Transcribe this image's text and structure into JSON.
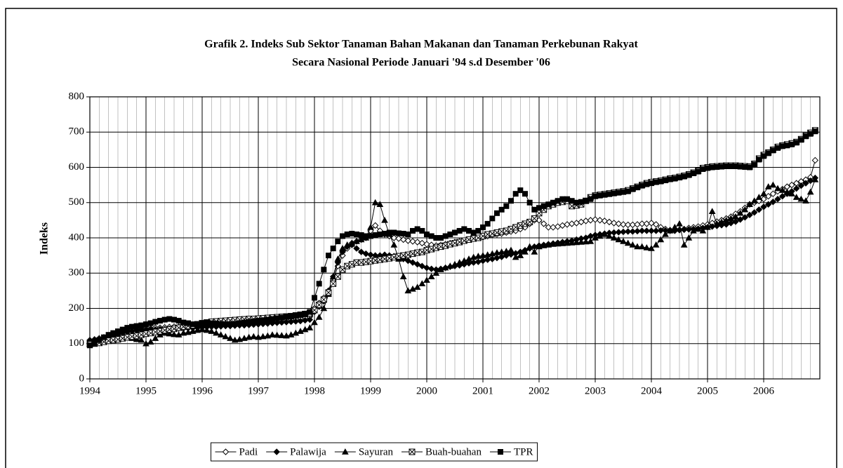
{
  "chart_data": {
    "type": "line",
    "title": "Grafik 2. Indeks Sub Sektor Tanaman Bahan Makanan dan Tanaman Perkebunan Rakyat",
    "subtitle": "Secara Nasional Periode Januari '94 s.d Desember '06",
    "y_label": "Indeks",
    "ylim": [
      0,
      800
    ],
    "yticks": [
      0,
      100,
      200,
      300,
      400,
      500,
      600,
      700,
      800
    ],
    "grid": true,
    "legend": "bottom",
    "categories": [
      "1994",
      null,
      null,
      null,
      null,
      null,
      null,
      null,
      null,
      null,
      null,
      null,
      "1995",
      null,
      null,
      null,
      null,
      null,
      null,
      null,
      null,
      null,
      null,
      null,
      "1996",
      null,
      null,
      null,
      null,
      null,
      null,
      null,
      null,
      null,
      null,
      null,
      "1997",
      null,
      null,
      null,
      null,
      null,
      null,
      null,
      null,
      null,
      null,
      null,
      "1998",
      null,
      null,
      null,
      null,
      null,
      null,
      null,
      null,
      null,
      null,
      null,
      "1999",
      null,
      null,
      null,
      null,
      null,
      null,
      null,
      null,
      null,
      null,
      null,
      "2000",
      null,
      null,
      null,
      null,
      null,
      null,
      null,
      null,
      null,
      null,
      null,
      "2001",
      null,
      null,
      null,
      null,
      null,
      null,
      null,
      null,
      null,
      null,
      null,
      "2002",
      null,
      null,
      null,
      null,
      null,
      null,
      null,
      null,
      null,
      null,
      null,
      "2003",
      null,
      null,
      null,
      null,
      null,
      null,
      null,
      null,
      null,
      null,
      null,
      "2004",
      null,
      null,
      null,
      null,
      null,
      null,
      null,
      null,
      null,
      null,
      null,
      "2005",
      null,
      null,
      null,
      null,
      null,
      null,
      null,
      null,
      null,
      null,
      null,
      "2006",
      null,
      null,
      null,
      null,
      null,
      null,
      null,
      null,
      null,
      null,
      null
    ],
    "series": [
      {
        "name": "Padi",
        "color": "#000000",
        "marker": "diamond-open",
        "values": [
          110,
          112,
          115,
          118,
          120,
          125,
          128,
          130,
          133,
          135,
          138,
          140,
          142,
          143,
          145,
          145,
          146,
          147,
          148,
          148,
          149,
          150,
          150,
          151,
          152,
          153,
          154,
          155,
          155,
          156,
          157,
          158,
          158,
          159,
          160,
          160,
          161,
          162,
          163,
          164,
          165,
          166,
          167,
          168,
          170,
          172,
          174,
          176,
          200,
          215,
          230,
          250,
          280,
          320,
          350,
          370,
          385,
          390,
          395,
          400,
          420,
          435,
          420,
          410,
          405,
          400,
          398,
          395,
          392,
          390,
          388,
          385,
          382,
          380,
          378,
          380,
          382,
          385,
          388,
          390,
          392,
          395,
          398,
          400,
          402,
          405,
          408,
          410,
          412,
          415,
          418,
          420,
          425,
          430,
          440,
          450,
          450,
          440,
          430,
          430,
          432,
          435,
          438,
          440,
          442,
          445,
          448,
          450,
          452,
          450,
          448,
          445,
          442,
          440,
          438,
          437,
          437,
          438,
          440,
          440,
          442,
          438,
          430,
          425,
          420,
          420,
          422,
          425,
          428,
          430,
          432,
          435,
          438,
          442,
          446,
          450,
          455,
          460,
          468,
          475,
          485,
          495,
          500,
          505,
          510,
          518,
          525,
          532,
          538,
          545,
          550,
          555,
          560,
          565,
          572,
          620
        ]
      },
      {
        "name": "Palawija",
        "color": "#000000",
        "marker": "diamond",
        "values": [
          108,
          110,
          112,
          115,
          118,
          122,
          126,
          130,
          133,
          135,
          137,
          138,
          139,
          140,
          140,
          141,
          141,
          142,
          142,
          143,
          143,
          144,
          144,
          145,
          146,
          147,
          148,
          148,
          149,
          150,
          150,
          151,
          152,
          152,
          153,
          154,
          155,
          156,
          157,
          158,
          159,
          160,
          161,
          162,
          163,
          164,
          166,
          168,
          190,
          205,
          220,
          250,
          290,
          330,
          360,
          375,
          380,
          370,
          360,
          355,
          352,
          350,
          350,
          352,
          350,
          348,
          345,
          340,
          335,
          330,
          325,
          320,
          315,
          312,
          310,
          312,
          315,
          318,
          320,
          322,
          325,
          328,
          330,
          332,
          335,
          338,
          340,
          343,
          346,
          350,
          353,
          356,
          360,
          365,
          370,
          375,
          378,
          380,
          382,
          384,
          386,
          388,
          390,
          392,
          395,
          398,
          400,
          405,
          408,
          410,
          412,
          414,
          415,
          416,
          417,
          418,
          418,
          419,
          420,
          420,
          420,
          420,
          421,
          421,
          422,
          422,
          423,
          423,
          424,
          425,
          426,
          428,
          430,
          432,
          434,
          436,
          438,
          442,
          446,
          452,
          458,
          465,
          472,
          480,
          488,
          495,
          502,
          510,
          518,
          525,
          532,
          540,
          548,
          555,
          562,
          570
        ]
      },
      {
        "name": "Sayuran",
        "color": "#000000",
        "marker": "triangle",
        "values": [
          100,
          105,
          108,
          110,
          112,
          115,
          118,
          120,
          118,
          115,
          112,
          110,
          100,
          105,
          115,
          125,
          130,
          128,
          126,
          125,
          130,
          132,
          135,
          138,
          140,
          138,
          135,
          130,
          125,
          120,
          115,
          110,
          112,
          115,
          118,
          120,
          118,
          120,
          122,
          125,
          124,
          123,
          122,
          125,
          130,
          135,
          140,
          145,
          160,
          175,
          200,
          240,
          290,
          340,
          370,
          380,
          385,
          390,
          395,
          400,
          430,
          500,
          495,
          450,
          410,
          380,
          340,
          290,
          250,
          255,
          260,
          270,
          280,
          290,
          300,
          310,
          315,
          320,
          325,
          330,
          335,
          340,
          345,
          348,
          350,
          352,
          355,
          358,
          360,
          362,
          365,
          345,
          350,
          360,
          375,
          360,
          375,
          378,
          380,
          382,
          383,
          384,
          385,
          386,
          387,
          388,
          389,
          390,
          400,
          405,
          410,
          405,
          400,
          395,
          390,
          385,
          380,
          375,
          375,
          372,
          370,
          380,
          395,
          410,
          420,
          430,
          440,
          380,
          400,
          420,
          425,
          420,
          430,
          475,
          440,
          445,
          450,
          455,
          460,
          470,
          480,
          495,
          505,
          515,
          525,
          545,
          550,
          540,
          535,
          530,
          525,
          515,
          510,
          505,
          530,
          565
        ]
      },
      {
        "name": "Buah-buahan",
        "color": "#000000",
        "marker": "square-x",
        "values": [
          98,
          100,
          102,
          105,
          108,
          110,
          112,
          115,
          118,
          120,
          122,
          125,
          128,
          130,
          133,
          135,
          138,
          140,
          142,
          145,
          148,
          150,
          152,
          155,
          158,
          160,
          162,
          163,
          164,
          165,
          166,
          167,
          168,
          169,
          170,
          170,
          171,
          172,
          173,
          174,
          175,
          176,
          177,
          178,
          180,
          182,
          184,
          186,
          195,
          210,
          225,
          245,
          270,
          290,
          310,
          320,
          325,
          330,
          330,
          332,
          334,
          336,
          338,
          340,
          342,
          345,
          348,
          350,
          352,
          355,
          358,
          360,
          365,
          368,
          372,
          375,
          378,
          382,
          385,
          388,
          392,
          395,
          398,
          400,
          405,
          410,
          412,
          415,
          418,
          420,
          425,
          430,
          435,
          440,
          445,
          455,
          470,
          480,
          490,
          495,
          500,
          502,
          505,
          490,
          492,
          495,
          505,
          515,
          520,
          522,
          524,
          526,
          528,
          530,
          532,
          535,
          540,
          545,
          550,
          555,
          558,
          560,
          562,
          565,
          568,
          570,
          573,
          576,
          580,
          585,
          590,
          598,
          600,
          602,
          603,
          604,
          605,
          605,
          605,
          604,
          603,
          602,
          610,
          625,
          635,
          642,
          650,
          658,
          662,
          665,
          668,
          672,
          680,
          690,
          698,
          705
        ]
      },
      {
        "name": "TPR",
        "color": "#000000",
        "marker": "square",
        "values": [
          95,
          100,
          110,
          118,
          125,
          130,
          135,
          140,
          145,
          148,
          150,
          152,
          155,
          158,
          162,
          165,
          168,
          170,
          168,
          165,
          160,
          158,
          155,
          155,
          158,
          160,
          158,
          157,
          156,
          155,
          155,
          156,
          158,
          160,
          162,
          163,
          165,
          166,
          168,
          170,
          172,
          174,
          176,
          178,
          180,
          182,
          185,
          190,
          230,
          270,
          310,
          350,
          370,
          390,
          405,
          410,
          412,
          410,
          408,
          405,
          405,
          408,
          410,
          412,
          415,
          415,
          413,
          412,
          410,
          420,
          425,
          420,
          410,
          405,
          400,
          400,
          405,
          410,
          415,
          420,
          425,
          420,
          415,
          420,
          430,
          440,
          455,
          470,
          480,
          490,
          505,
          525,
          535,
          525,
          500,
          480,
          485,
          490,
          495,
          500,
          505,
          510,
          510,
          505,
          500,
          502,
          505,
          510,
          518,
          520,
          522,
          524,
          526,
          528,
          530,
          532,
          538,
          543,
          548,
          552,
          555,
          558,
          560,
          563,
          566,
          568,
          571,
          574,
          578,
          583,
          588,
          595,
          598,
          600,
          601,
          602,
          603,
          603,
          603,
          602,
          601,
          600,
          608,
          622,
          632,
          640,
          648,
          655,
          660,
          662,
          665,
          670,
          678,
          688,
          695,
          702
        ]
      }
    ]
  }
}
